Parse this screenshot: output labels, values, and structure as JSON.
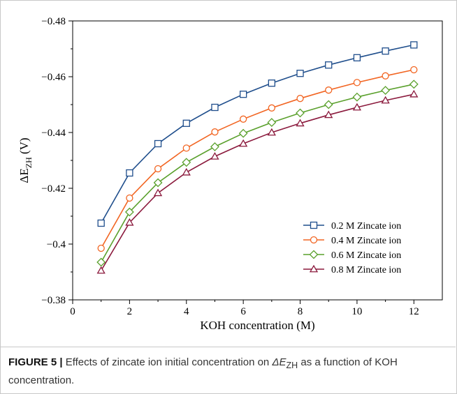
{
  "chart_data": {
    "type": "line",
    "ylabel_main": "ΔE",
    "ylabel_sub": "ZH",
    "ylabel_unit": " (V)",
    "xlabel": "KOH concentration (M)",
    "xlim": [
      0,
      13
    ],
    "ylim": [
      -0.38,
      -0.48
    ],
    "y_inverted": true,
    "x_ticks": [
      0,
      2,
      4,
      6,
      8,
      10,
      12
    ],
    "x_tick_labels": [
      "0",
      "2",
      "4",
      "6",
      "8",
      "10",
      "12"
    ],
    "y_ticks": [
      -0.38,
      -0.4,
      -0.42,
      -0.44,
      -0.46,
      -0.48
    ],
    "y_tick_labels": [
      "−0.38",
      "−0.4",
      "−0.42",
      "−0.44",
      "−0.46",
      "−0.48"
    ],
    "grid": false,
    "legend_position": "bottom-right",
    "x": [
      1,
      2,
      3,
      4,
      5,
      6,
      7,
      8,
      9,
      10,
      11,
      12
    ],
    "series": [
      {
        "name": "0.2 M Zincate ion",
        "color": "#1f4e8c",
        "marker": "square",
        "values": [
          -0.4075,
          -0.4255,
          -0.436,
          -0.4433,
          -0.449,
          -0.4537,
          -0.4577,
          -0.4612,
          -0.4642,
          -0.4668,
          -0.4692,
          -0.4714
        ]
      },
      {
        "name": "0.4 M Zincate ion",
        "color": "#f26522",
        "marker": "circle",
        "values": [
          -0.3985,
          -0.4165,
          -0.427,
          -0.4344,
          -0.4402,
          -0.4448,
          -0.4488,
          -0.4522,
          -0.4552,
          -0.4579,
          -0.4603,
          -0.4625
        ]
      },
      {
        "name": "0.6 M Zincate ion",
        "color": "#5aa02c",
        "marker": "diamond",
        "values": [
          -0.3935,
          -0.4115,
          -0.422,
          -0.4293,
          -0.4349,
          -0.4397,
          -0.4436,
          -0.447,
          -0.45,
          -0.4527,
          -0.4551,
          -0.4573
        ]
      },
      {
        "name": "0.8 M Zincate ion",
        "color": "#8b1a3d",
        "marker": "triangle",
        "values": [
          -0.3905,
          -0.4077,
          -0.4183,
          -0.4257,
          -0.4314,
          -0.436,
          -0.44,
          -0.4433,
          -0.4463,
          -0.449,
          -0.4515,
          -0.4537
        ]
      }
    ]
  },
  "caption": {
    "lead": "FIGURE 5 |",
    "text_before": " Effects of zincate ion initial concentration on ",
    "symbol": "ΔE",
    "symbol_sub": "ZH",
    "text_after": " as a function of KOH concentration."
  }
}
